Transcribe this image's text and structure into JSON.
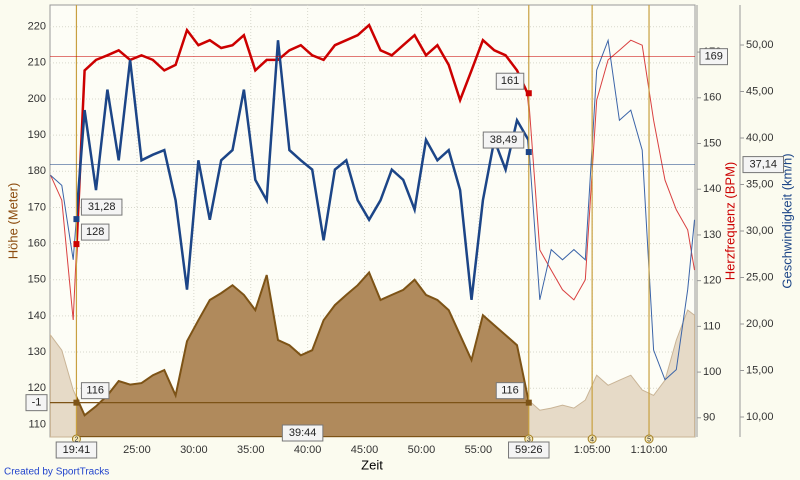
{
  "chart_data": {
    "type": "line",
    "x_label": "Zeit",
    "y_label": "Höhe (Meter)",
    "y2_label": "Herzfrequenz (BPM)",
    "y3_label": "Geschwindigkeit (km/h)",
    "footer": "Created by SportTracks",
    "x": [
      17.4,
      18.4,
      19.4,
      20.4,
      21.4,
      22.4,
      23.4,
      24.4,
      25.4,
      26.4,
      27.4,
      28.4,
      29.4,
      30.4,
      31.4,
      32.4,
      33.4,
      34.4,
      35.4,
      36.4,
      37.4,
      38.4,
      39.4,
      40.4,
      41.4,
      42.4,
      43.4,
      44.4,
      45.4,
      46.4,
      47.4,
      48.4,
      49.4,
      50.4,
      51.4,
      52.4,
      53.4,
      54.4,
      55.4,
      56.4,
      57.4,
      58.4,
      59.4,
      60.4,
      61.4,
      62.4,
      63.4,
      64.4,
      65.4,
      66.4,
      67.4,
      68.4,
      69.4,
      70.4,
      71.4,
      72.4,
      73.4,
      74.0
    ],
    "xlim": [
      17.36,
      74.04
    ],
    "xticks": [
      {
        "value": 25,
        "label": "25:00"
      },
      {
        "value": 30,
        "label": "30:00"
      },
      {
        "value": 35,
        "label": "35:00"
      },
      {
        "value": 40,
        "label": "40:00"
      },
      {
        "value": 45,
        "label": "45:00"
      },
      {
        "value": 50,
        "label": "50:00"
      },
      {
        "value": 55,
        "label": "55:00"
      },
      {
        "value": 65,
        "label": "1:05:00"
      },
      {
        "value": 70,
        "label": "1:10:00"
      }
    ],
    "ylim": [
      106.5,
      226
    ],
    "yticks": [
      110,
      120,
      130,
      140,
      150,
      160,
      170,
      180,
      190,
      200,
      210,
      220
    ],
    "y2lim": [
      85.8,
      180.3
    ],
    "y2ticks": [
      90,
      100,
      110,
      120,
      130,
      140,
      150,
      160,
      170
    ],
    "y3lim": [
      7.85,
      54.3
    ],
    "y3ticks": [
      {
        "value": 10,
        "label": "10,00"
      },
      {
        "value": 15,
        "label": "15,00"
      },
      {
        "value": 20,
        "label": "20,00"
      },
      {
        "value": 25,
        "label": "25,00"
      },
      {
        "value": 30,
        "label": "30,00"
      },
      {
        "value": 35,
        "label": "35,00"
      },
      {
        "value": 40,
        "label": "40,00"
      },
      {
        "value": 45,
        "label": "45,00"
      },
      {
        "value": 50,
        "label": "50,00"
      }
    ],
    "grid": true,
    "series": [
      {
        "axis": "y",
        "style": "area",
        "color": "#b08a5c",
        "line_color": "#7d5316",
        "faded_color": "#e6dac7",
        "values": [
          134.7,
          130.5,
          119.5,
          112.5,
          115,
          118,
          122,
          121,
          121.4,
          123.6,
          125,
          118,
          133,
          138.8,
          144.4,
          146.3,
          148.5,
          145.8,
          141.6,
          151.3,
          133.3,
          131.9,
          129.1,
          130.5,
          138.8,
          143,
          145.8,
          148.5,
          152,
          144.4,
          145.8,
          147.2,
          150,
          145.8,
          144.4,
          141.6,
          134.7,
          127.8,
          140.2,
          137.4,
          134.7,
          131.9,
          116.7,
          113.9,
          114.5,
          115.3,
          114.5,
          116.7,
          123.6,
          120.8,
          122.2,
          123.6,
          119.5,
          118,
          122.2,
          133.3,
          141.6,
          140.2
        ],
        "selection_values": [
          116,
          116
        ],
        "change": -1
      },
      {
        "axis": "y2",
        "style": "line",
        "color": "#cc0000",
        "faded_color": "#d94040",
        "values": [
          143.1,
          137.6,
          111.4,
          166,
          168.3,
          169.3,
          170.4,
          168.3,
          169.3,
          168.3,
          166,
          167.2,
          174.8,
          171.5,
          172.6,
          170.9,
          171.5,
          173.7,
          166,
          168.3,
          168.3,
          170.4,
          171.5,
          169.3,
          168.3,
          171.5,
          172.6,
          173.7,
          175.9,
          170.4,
          169.3,
          171.5,
          173.7,
          169.3,
          171.5,
          167.2,
          159.5,
          166,
          172.6,
          170.4,
          169.3,
          166,
          160.6,
          126.7,
          122.3,
          118,
          115.8,
          120.2,
          159.5,
          168.3,
          170.4,
          172.6,
          171.5,
          155.1,
          142,
          135.5,
          131.1,
          122.3
        ],
        "selection_values": [
          128,
          161
        ],
        "reference": 169
      },
      {
        "axis": "y3",
        "style": "line",
        "color": "#1c4587",
        "faded_color": "#3b64a8",
        "values": [
          36,
          34.9,
          26.9,
          43,
          34.4,
          45.2,
          37.6,
          48.4,
          37.6,
          38.2,
          38.7,
          33.3,
          23.7,
          37.6,
          31.2,
          37.6,
          38.7,
          45.2,
          35.5,
          33.3,
          50.5,
          38.7,
          37.6,
          36.6,
          29,
          36.6,
          37.6,
          33.3,
          31.2,
          33.3,
          36.6,
          35.5,
          32.3,
          39.8,
          37.6,
          38.7,
          34.4,
          22.6,
          33.3,
          39.8,
          36.6,
          41.9,
          39.8,
          22.6,
          28,
          26.9,
          28,
          26.9,
          47.3,
          50.5,
          41.9,
          43,
          38.7,
          17.2,
          14,
          15.1,
          23.7,
          31.2
        ],
        "selection_values": [
          {
            "value": 31.28,
            "label": "31,28"
          },
          {
            "value": 38.49,
            "label": "38,49"
          }
        ],
        "reference": {
          "value": 37.14,
          "label": "37,14"
        }
      }
    ],
    "selection": [
      {
        "value": 19.683,
        "label": "19:41"
      },
      {
        "value": 59.433,
        "label": "59:26"
      }
    ],
    "selection_duration": "39:44",
    "lap_markers": [
      {
        "value": 19.683,
        "label": "2"
      },
      {
        "value": 59.433,
        "label": "3"
      },
      {
        "value": 65.0,
        "label": "4"
      },
      {
        "value": 70.0,
        "label": "5"
      }
    ]
  }
}
